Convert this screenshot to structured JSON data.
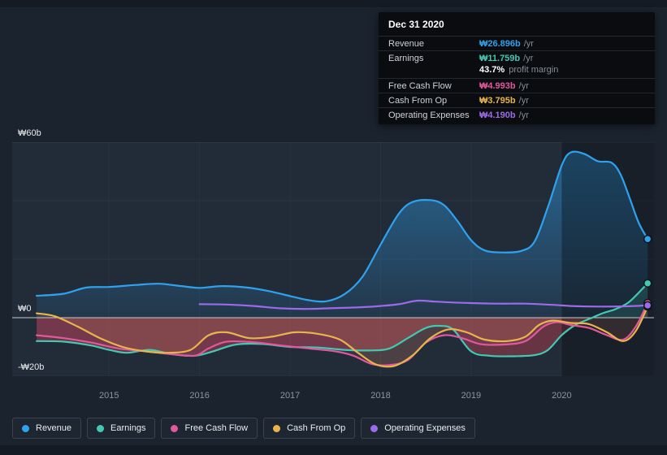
{
  "tooltip": {
    "title": "Dec 31 2020",
    "rows": [
      {
        "label": "Revenue",
        "value": "₩26.896b",
        "suffix": "/yr",
        "color": "#2fa2ee"
      },
      {
        "label": "Earnings",
        "value": "₩11.759b",
        "suffix": "/yr",
        "color": "#45c8b1",
        "sub": {
          "strong": "43.7%",
          "text": "profit margin"
        }
      },
      {
        "label": "Free Cash Flow",
        "value": "₩4.993b",
        "suffix": "/yr",
        "color": "#df5a9c"
      },
      {
        "label": "Cash From Op",
        "value": "₩3.795b",
        "suffix": "/yr",
        "color": "#e9b44c"
      },
      {
        "label": "Operating Expenses",
        "value": "₩4.190b",
        "suffix": "/yr",
        "color": "#9b6be8"
      }
    ]
  },
  "legend": {
    "items": [
      {
        "label": "Revenue",
        "color": "#2fa2ee"
      },
      {
        "label": "Earnings",
        "color": "#45c8b1"
      },
      {
        "label": "Free Cash Flow",
        "color": "#df5a9c"
      },
      {
        "label": "Cash From Op",
        "color": "#e9b44c"
      },
      {
        "label": "Operating Expenses",
        "color": "#9b6be8"
      }
    ]
  },
  "chart_data": {
    "type": "area",
    "title": "",
    "xlabel": "",
    "ylabel": "",
    "xlim": [
      2013.93,
      2021.02
    ],
    "ylim": [
      -20,
      60
    ],
    "x_ticks": [
      2015,
      2016,
      2017,
      2018,
      2019,
      2020
    ],
    "y_ticks": [
      {
        "label": "₩60b",
        "value": 60
      },
      {
        "label": "₩0",
        "value": 0
      },
      {
        "label": "-₩20b",
        "value": -20
      }
    ],
    "grid_values": [
      60,
      40,
      20,
      0,
      -20
    ],
    "shaded_from": 2020.0,
    "legend_position": "bottom",
    "series": [
      {
        "name": "Revenue",
        "color": "#2fa2ee",
        "fill": "gradient",
        "points": [
          [
            2014.2,
            7.5
          ],
          [
            2014.5,
            8.2
          ],
          [
            2014.75,
            10.3
          ],
          [
            2015.0,
            10.5
          ],
          [
            2015.3,
            11.2
          ],
          [
            2015.55,
            11.6
          ],
          [
            2015.8,
            10.8
          ],
          [
            2016.0,
            10.2
          ],
          [
            2016.25,
            10.8
          ],
          [
            2016.5,
            10.4
          ],
          [
            2016.75,
            9.2
          ],
          [
            2017.0,
            7.4
          ],
          [
            2017.2,
            6.0
          ],
          [
            2017.4,
            5.6
          ],
          [
            2017.6,
            8.0
          ],
          [
            2017.8,
            14.0
          ],
          [
            2018.0,
            25.0
          ],
          [
            2018.2,
            35.5
          ],
          [
            2018.35,
            39.5
          ],
          [
            2018.55,
            40.2
          ],
          [
            2018.7,
            38.5
          ],
          [
            2018.85,
            33.0
          ],
          [
            2019.0,
            26.5
          ],
          [
            2019.15,
            23.0
          ],
          [
            2019.35,
            22.3
          ],
          [
            2019.55,
            22.8
          ],
          [
            2019.7,
            26.0
          ],
          [
            2019.85,
            38.0
          ],
          [
            2020.0,
            52.0
          ],
          [
            2020.1,
            56.5
          ],
          [
            2020.25,
            56.0
          ],
          [
            2020.4,
            53.5
          ],
          [
            2020.55,
            53.0
          ],
          [
            2020.65,
            49.0
          ],
          [
            2020.75,
            41.0
          ],
          [
            2020.85,
            32.5
          ],
          [
            2020.95,
            26.896
          ]
        ]
      },
      {
        "name": "Earnings",
        "color": "#45c8b1",
        "fill": "sign",
        "neg_fill": "rgba(214,69,86,0.38)",
        "pos_fill": "rgba(69,200,177,0.28)",
        "points": [
          [
            2014.2,
            -8.0
          ],
          [
            2014.5,
            -8.2
          ],
          [
            2014.8,
            -9.5
          ],
          [
            2015.0,
            -11.0
          ],
          [
            2015.2,
            -12.0
          ],
          [
            2015.45,
            -11.0
          ],
          [
            2015.7,
            -12.5
          ],
          [
            2015.95,
            -13.0
          ],
          [
            2016.15,
            -11.5
          ],
          [
            2016.4,
            -9.2
          ],
          [
            2016.7,
            -9.0
          ],
          [
            2017.0,
            -10.0
          ],
          [
            2017.3,
            -10.2
          ],
          [
            2017.6,
            -11.0
          ],
          [
            2017.9,
            -11.2
          ],
          [
            2018.1,
            -10.5
          ],
          [
            2018.3,
            -7.0
          ],
          [
            2018.5,
            -3.5
          ],
          [
            2018.65,
            -2.8
          ],
          [
            2018.8,
            -4.0
          ],
          [
            2019.0,
            -11.5
          ],
          [
            2019.2,
            -13.0
          ],
          [
            2019.45,
            -13.2
          ],
          [
            2019.7,
            -12.8
          ],
          [
            2019.85,
            -11.0
          ],
          [
            2020.0,
            -6.0
          ],
          [
            2020.15,
            -2.5
          ],
          [
            2020.3,
            -0.5
          ],
          [
            2020.45,
            1.5
          ],
          [
            2020.6,
            3.0
          ],
          [
            2020.75,
            5.5
          ],
          [
            2020.95,
            11.759
          ]
        ]
      },
      {
        "name": "Free Cash Flow",
        "color": "#df5a9c",
        "fill": "soft",
        "points": [
          [
            2014.2,
            -6.0
          ],
          [
            2014.5,
            -7.0
          ],
          [
            2014.8,
            -8.5
          ],
          [
            2015.1,
            -10.5
          ],
          [
            2015.4,
            -11.5
          ],
          [
            2015.7,
            -12.5
          ],
          [
            2015.95,
            -13.0
          ],
          [
            2016.1,
            -10.5
          ],
          [
            2016.3,
            -8.2
          ],
          [
            2016.6,
            -8.4
          ],
          [
            2016.9,
            -9.5
          ],
          [
            2017.2,
            -10.5
          ],
          [
            2017.5,
            -11.5
          ],
          [
            2017.7,
            -13.0
          ],
          [
            2017.9,
            -15.8
          ],
          [
            2018.1,
            -16.2
          ],
          [
            2018.3,
            -14.5
          ],
          [
            2018.5,
            -8.5
          ],
          [
            2018.7,
            -6.0
          ],
          [
            2018.9,
            -7.0
          ],
          [
            2019.1,
            -9.0
          ],
          [
            2019.35,
            -9.2
          ],
          [
            2019.6,
            -8.0
          ],
          [
            2019.8,
            -3.0
          ],
          [
            2019.95,
            -1.5
          ],
          [
            2020.1,
            -2.5
          ],
          [
            2020.3,
            -3.5
          ],
          [
            2020.5,
            -6.0
          ],
          [
            2020.68,
            -7.5
          ],
          [
            2020.82,
            -3.0
          ],
          [
            2020.95,
            4.993
          ]
        ]
      },
      {
        "name": "Cash From Op",
        "color": "#e9b44c",
        "fill": "soft",
        "points": [
          [
            2014.2,
            1.5
          ],
          [
            2014.4,
            0.5
          ],
          [
            2014.65,
            -3.0
          ],
          [
            2014.9,
            -7.0
          ],
          [
            2015.15,
            -10.0
          ],
          [
            2015.4,
            -11.5
          ],
          [
            2015.65,
            -12.0
          ],
          [
            2015.9,
            -11.0
          ],
          [
            2016.1,
            -6.0
          ],
          [
            2016.3,
            -5.0
          ],
          [
            2016.55,
            -7.0
          ],
          [
            2016.8,
            -6.5
          ],
          [
            2017.05,
            -5.0
          ],
          [
            2017.3,
            -5.5
          ],
          [
            2017.55,
            -7.5
          ],
          [
            2017.75,
            -12.0
          ],
          [
            2017.95,
            -16.0
          ],
          [
            2018.15,
            -16.5
          ],
          [
            2018.35,
            -13.0
          ],
          [
            2018.55,
            -7.0
          ],
          [
            2018.75,
            -4.0
          ],
          [
            2018.95,
            -5.0
          ],
          [
            2019.15,
            -7.5
          ],
          [
            2019.4,
            -8.0
          ],
          [
            2019.6,
            -6.5
          ],
          [
            2019.75,
            -2.5
          ],
          [
            2019.9,
            -1.0
          ],
          [
            2020.1,
            -1.8
          ],
          [
            2020.3,
            -2.2
          ],
          [
            2020.5,
            -5.0
          ],
          [
            2020.68,
            -8.0
          ],
          [
            2020.82,
            -4.5
          ],
          [
            2020.95,
            3.795
          ]
        ]
      },
      {
        "name": "Operating Expenses",
        "color": "#9b6be8",
        "fill": "none",
        "points": [
          [
            2016.0,
            4.6
          ],
          [
            2016.3,
            4.5
          ],
          [
            2016.6,
            4.0
          ],
          [
            2016.9,
            3.2
          ],
          [
            2017.2,
            3.0
          ],
          [
            2017.5,
            3.3
          ],
          [
            2017.8,
            3.6
          ],
          [
            2018.0,
            4.0
          ],
          [
            2018.2,
            4.6
          ],
          [
            2018.4,
            5.8
          ],
          [
            2018.6,
            5.5
          ],
          [
            2018.8,
            5.2
          ],
          [
            2019.0,
            5.0
          ],
          [
            2019.3,
            4.8
          ],
          [
            2019.6,
            4.8
          ],
          [
            2019.9,
            4.4
          ],
          [
            2020.1,
            4.0
          ],
          [
            2020.4,
            3.8
          ],
          [
            2020.7,
            3.9
          ],
          [
            2020.95,
            4.19
          ]
        ]
      }
    ]
  }
}
